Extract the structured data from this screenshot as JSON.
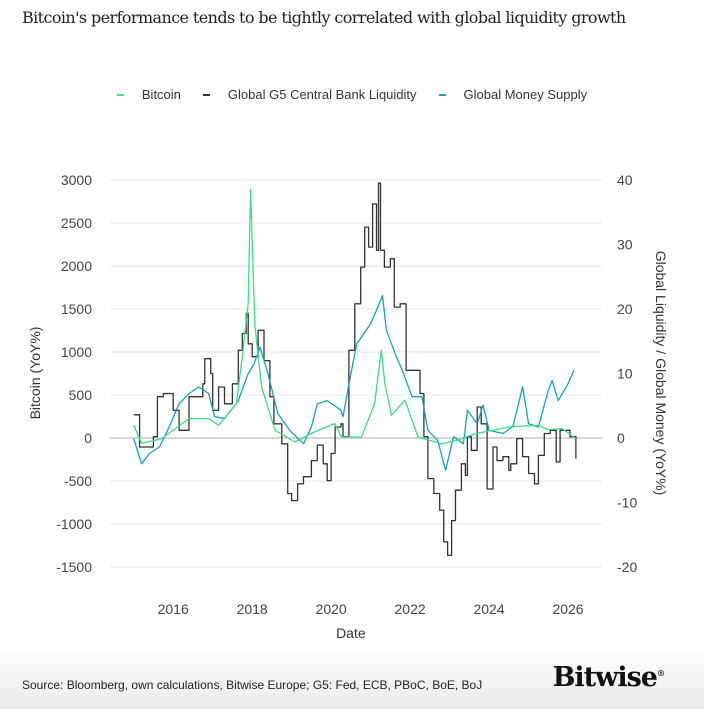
{
  "chart_data": {
    "type": "line",
    "title": "Bitcoin's performance tends to be tightly correlated with global liquidity growth",
    "xlabel": "Date",
    "ylabel_left": "Bitcoin (YoY%)",
    "ylabel_right": "Global Liquidity / Global Money (YoY%)",
    "xlim": [
      2014.4,
      2026.86
    ],
    "ylim_left": [
      -1500,
      3000
    ],
    "ylim_right": [
      -20,
      40
    ],
    "x_ticks": [
      2016,
      2018,
      2020,
      2022,
      2024,
      2026
    ],
    "y_ticks_left": [
      3000,
      2500,
      2000,
      1500,
      1000,
      500,
      0,
      -500,
      -1000,
      -1500
    ],
    "y_ticks_right": [
      40,
      30,
      20,
      10,
      0,
      -10,
      -20
    ],
    "grid": true,
    "legend_placement": "top-center",
    "series": [
      {
        "name": "Bitcoin",
        "axis": "left",
        "color": "#3ddc84",
        "style": "line",
        "x": [
          2015.0,
          2015.2,
          2015.7,
          2016.4,
          2016.9,
          2017.15,
          2017.6,
          2017.75,
          2017.9,
          2017.96,
          2018.0,
          2018.07,
          2018.24,
          2018.58,
          2019.08,
          2019.58,
          2020.09,
          2020.26,
          2020.77,
          2021.1,
          2021.27,
          2021.36,
          2021.53,
          2021.87,
          2022.2,
          2022.8,
          2023.2,
          2023.65,
          2024.5,
          2025.25,
          2025.5,
          2025.85,
          2026.2
        ],
        "y": [
          148,
          -60,
          -10,
          225,
          225,
          148,
          400,
          945,
          1570,
          2890,
          2270,
          1300,
          595,
          90,
          -47,
          70,
          167,
          12,
          12,
          400,
          1020,
          634,
          265,
          440,
          12,
          -66,
          -27,
          50,
          128,
          148,
          97,
          109,
          -8
        ]
      },
      {
        "name": "Global G5 Central Bank Liquidity",
        "axis": "right",
        "color": "#333333",
        "style": "step",
        "x": [
          2015.0,
          2015.15,
          2015.5,
          2015.6,
          2015.75,
          2016.0,
          2016.15,
          2016.4,
          2016.75,
          2016.8,
          2016.95,
          2017.0,
          2017.15,
          2017.3,
          2017.5,
          2017.65,
          2017.75,
          2017.85,
          2017.9,
          2018.0,
          2018.15,
          2018.3,
          2018.45,
          2018.55,
          2018.75,
          2018.9,
          2019.0,
          2019.15,
          2019.3,
          2019.5,
          2019.65,
          2019.8,
          2019.9,
          2020.0,
          2020.1,
          2020.25,
          2020.3,
          2020.45,
          2020.6,
          2020.75,
          2020.85,
          2020.95,
          2021.05,
          2021.15,
          2021.2,
          2021.25,
          2021.35,
          2021.5,
          2021.6,
          2021.75,
          2021.9,
          2022.05,
          2022.25,
          2022.35,
          2022.45,
          2022.6,
          2022.75,
          2022.85,
          2022.95,
          2023.05,
          2023.15,
          2023.3,
          2023.4,
          2023.45,
          2023.55,
          2023.7,
          2023.8,
          2023.95,
          2024.1,
          2024.2,
          2024.35,
          2024.5,
          2024.55,
          2024.7,
          2024.85,
          2025.0,
          2025.15,
          2025.25,
          2025.4,
          2025.55,
          2025.7,
          2025.8,
          2026.05,
          2026.2
        ],
        "y": [
          3.6,
          -1.4,
          0.2,
          6.4,
          6.9,
          4.3,
          1.2,
          6.4,
          8.4,
          12.3,
          10,
          4.3,
          7.9,
          5.3,
          8.4,
          13.6,
          16.2,
          19.3,
          14.6,
          12.6,
          16.7,
          12,
          6.4,
          2.2,
          -0.9,
          -8.6,
          -9.7,
          -7.1,
          -6.0,
          -3.5,
          -1.1,
          -4.0,
          -6.6,
          -2.4,
          1.7,
          2.2,
          0.2,
          13.6,
          20.8,
          26.5,
          32.7,
          29.6,
          36.3,
          29.1,
          39.5,
          29.1,
          26.5,
          27.8,
          20.3,
          20.8,
          10.5,
          10.5,
          6.9,
          0.2,
          -6.3,
          -8.6,
          -11.2,
          -16.1,
          -18.2,
          -12.8,
          -8.1,
          -4.0,
          -5.8,
          0.2,
          -1.9,
          4.8,
          2.2,
          -7.9,
          -1.4,
          -3.5,
          -2.9,
          -5.0,
          -4.0,
          -0.1,
          -2.9,
          -5.5,
          -7.1,
          -2.7,
          0.7,
          1.2,
          -3.7,
          1.2,
          0.2,
          -3.2
        ]
      },
      {
        "name": "Global Money Supply",
        "axis": "right",
        "color": "#13a3b8",
        "style": "line",
        "x": [
          2015.0,
          2015.2,
          2015.4,
          2015.65,
          2015.9,
          2016.15,
          2016.4,
          2016.65,
          2016.9,
          2017.05,
          2017.3,
          2017.65,
          2017.9,
          2018.05,
          2018.2,
          2018.4,
          2018.65,
          2018.95,
          2019.3,
          2019.5,
          2019.65,
          2019.9,
          2020.25,
          2020.3,
          2020.5,
          2020.65,
          2021.0,
          2021.15,
          2021.3,
          2021.4,
          2021.65,
          2021.8,
          2022.05,
          2022.3,
          2022.45,
          2022.7,
          2022.9,
          2023.1,
          2023.35,
          2023.45,
          2023.7,
          2023.85,
          2024.0,
          2024.35,
          2024.6,
          2024.85,
          2025.0,
          2025.25,
          2025.5,
          2025.6,
          2025.75,
          2026.0,
          2026.15
        ],
        "y": [
          -0.1,
          -4.0,
          -2.4,
          -1.4,
          1.7,
          5.3,
          6.9,
          7.9,
          6.9,
          3.3,
          3.0,
          5.8,
          10,
          11.5,
          14.1,
          10,
          3.8,
          1.2,
          -0.9,
          1.7,
          5.3,
          5.8,
          4.3,
          3.3,
          10,
          14.6,
          17.7,
          19.8,
          22.1,
          16.7,
          12.6,
          10.5,
          6.4,
          6.4,
          1.2,
          -0.4,
          -5.0,
          0.2,
          -0.9,
          4.3,
          2.2,
          5.1,
          1.2,
          0.7,
          1.7,
          7.9,
          2.2,
          1.7,
          7.4,
          8.9,
          5.8,
          8.4,
          10.5
        ]
      }
    ]
  },
  "footer": {
    "source": "Source: Bloomberg, own calculations, Bitwise Europe; G5: Fed, ECB, PBoC, BoE, BoJ",
    "logo": "Bitwise"
  }
}
